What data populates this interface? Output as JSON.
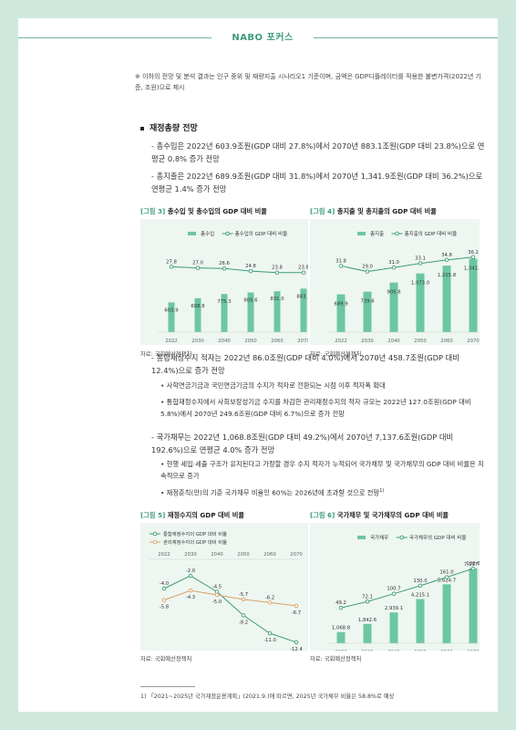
{
  "header": {
    "title": "NABO 포커스"
  },
  "note": "※ 이하의 전망 및 분석 결과는 인구 중위 및 재량지출 시나리오1 기준이며, 금액은 GDP디플레이터를 적용한 불변가격(2022년 기준, 조원)으로 제시",
  "section_title": "재정총량 전망",
  "p1": "- 총수입은 2022년 603.9조원(GDP 대비 27.8%)에서 2070년 883.1조원(GDP 대비 23.8%)으로 연평균 0.8% 증가 전망",
  "p2": "- 총지출은 2022년 689.9조원(GDP 대비 31.8%)에서 2070년 1,341.9조원(GDP 대비 36.2%)으로 연평균 1.4% 증가 전망",
  "p3": "- 통합재정수지 적자는 2022년 86.0조원(GDP 대비 4.0%)에서 2070년 458.7조원(GDP 대비 12.4%)으로 증가 전망",
  "b3a": "• 사학연금기금과 국민연금기금의 수지가 적자로 전환되는 시점 이후 적자폭 확대",
  "b3b": "• 통합재정수지에서 사회보장성기금 수지를 차감한 관리재정수지의 적자 규모는 2022년 127.0조원(GDP 대비 5.8%)에서 2070년 249.6조원(GDP 대비 6.7%)으로 증가 전망",
  "p4": "- 국가채무는 2022년 1,068.8조원(GDP 대비 49.2%)에서 2070년 7,137.6조원(GDP 대비 192.6%)으로 연평균 4.0% 증가 전망",
  "b4a": "• 현행 세입·세출 구조가 유지된다고 가정할 경우 수지 적자가 누적되어 국가채무 및 국가채무의 GDP 대비 비율은 지속적으로 증가",
  "b4b": "• 재정준칙(안)의 기준 국가채무 비율인 60%는 2026년에 초과할 것으로 전망",
  "b4b_sup": "1)",
  "footnote": "1) 「2021~2025년 국가재정운용계획」(2021.9.)에 따르면, 2025년 국가채무 비율은 58.8%로 예상",
  "colors": {
    "accent": "#3d9b78",
    "bar": "#6cc7a1",
    "line": "#3d9b78",
    "orange": "#d9a06a",
    "bg": "#cfe8dd",
    "chart_bg": "#eef6f1"
  },
  "chart_data": [
    {
      "fig_num": "[그림 3]",
      "fig_title": "총수입 및 총수입의 GDP 대비 비율",
      "type": "bar+line",
      "categories": [
        "2022",
        "2030",
        "2040",
        "2050",
        "2060",
        "2070"
      ],
      "series": [
        {
          "name": "총수입",
          "type": "bar",
          "values": [
            603.9,
            688.8,
            775.3,
            805.6,
            831.0,
            883.1
          ],
          "labels": [
            "603.9",
            "688.8",
            "775.3",
            "805.6",
            "831.0",
            "883.1"
          ]
        },
        {
          "name": "총수입의 GDP 대비 비율",
          "type": "line",
          "values": [
            27.8,
            27.0,
            26.6,
            24.8,
            23.8,
            23.8
          ],
          "labels": [
            "27.8",
            "27.0",
            "26.6",
            "24.8",
            "23.8",
            "23.8"
          ]
        }
      ],
      "source": "자료: 국회예산정책처"
    },
    {
      "fig_num": "[그림 4]",
      "fig_title": "총지출 및 총지출의 GDP 대비 비율",
      "type": "bar+line",
      "categories": [
        "2022",
        "2030",
        "2040",
        "2050",
        "2060",
        "2070"
      ],
      "series": [
        {
          "name": "총지출",
          "type": "bar",
          "values": [
            689.9,
            739.6,
            905.8,
            1073.0,
            1215.8,
            1341.9
          ],
          "labels": [
            "689.9",
            "739.6",
            "905.8",
            "1,073.0",
            "1,215.8",
            "1,341.9"
          ]
        },
        {
          "name": "총지출의 GDP 대비 비율",
          "type": "line",
          "values": [
            31.8,
            29.0,
            31.0,
            33.1,
            34.8,
            36.2
          ],
          "labels": [
            "31.8",
            "29.0",
            "31.0",
            "33.1",
            "34.8",
            "36.2"
          ]
        }
      ],
      "source": "자료: 국회예산정책처"
    },
    {
      "fig_num": "[그림 5]",
      "fig_title": "재정수지의 GDP 대비 비율",
      "type": "line",
      "categories": [
        "2022",
        "2030",
        "2040",
        "2050",
        "2060",
        "2070"
      ],
      "series": [
        {
          "name": "통합재정수지의 GDP 대비 비율",
          "values": [
            -4.0,
            -2.0,
            -4.5,
            -8.2,
            -11.0,
            -12.4
          ],
          "labels": [
            "-4.0",
            "-2.0",
            "-4.5",
            "-8.2",
            "-11.0",
            "-12.4"
          ]
        },
        {
          "name": "관리재정수지의 GDP 대비 비율",
          "values": [
            -5.8,
            -4.3,
            -5.0,
            -5.7,
            -6.2,
            -6.7
          ],
          "labels": [
            "-5.8",
            "-4.3",
            "-5.0",
            "-5.7",
            "-6.2",
            "-6.7"
          ]
        }
      ],
      "source": "자료: 국회예산정책처"
    },
    {
      "fig_num": "[그림 6]",
      "fig_title": "국가채무 및 국가채무의 GDP 대비 비율",
      "type": "bar+line",
      "categories": [
        "2022",
        "2030",
        "2040",
        "2050",
        "2060",
        "2070"
      ],
      "series": [
        {
          "name": "국가채무",
          "type": "bar",
          "values": [
            1068.8,
            1842.6,
            2939.1,
            4215.1,
            5624.7,
            7137.6
          ],
          "labels": [
            "1,068.8",
            "1,842.6",
            "2,939.1",
            "4,215.1",
            "5,624.7",
            "7,137.6"
          ]
        },
        {
          "name": "국가채무의 GDP 대비 비율",
          "type": "line",
          "values": [
            49.2,
            72.1,
            100.7,
            130.0,
            161.0,
            192.6
          ],
          "labels": [
            "49.2",
            "72.1",
            "100.7",
            "130.0",
            "161.0",
            "192.6"
          ]
        }
      ],
      "source": "자료: 국회예산정책처"
    }
  ]
}
